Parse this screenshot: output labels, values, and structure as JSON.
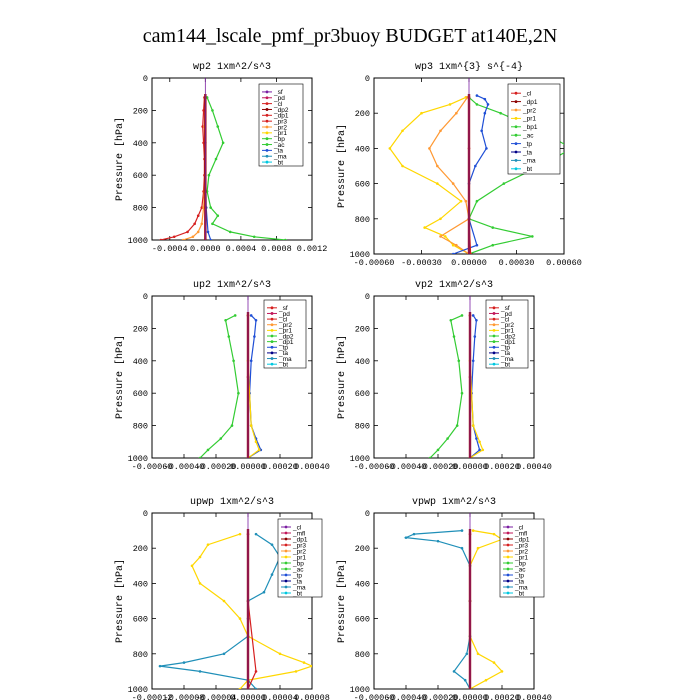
{
  "title": "cam144_lscale_pmf_pr3buoy  BUDGET at140E,2N",
  "colors": {
    "red": "#d62020",
    "darkred": "#8b0000",
    "purple": "#7b1fa2",
    "magenta": "#c2185b",
    "orange": "#ff9933",
    "yellow": "#ffd700",
    "green": "#33cc33",
    "blue": "#1f4fd6",
    "teal": "#1f8fb8",
    "cyan": "#00c8e0",
    "navy": "#000088",
    "black": "#000000",
    "thick": "#a01010"
  },
  "chart_data": [
    {
      "type": "line",
      "title": "wp2  1xm^2/s^3",
      "ylabel": "Pressure [hPa]",
      "xlim": [
        -0.0006,
        0.0012
      ],
      "ylim": [
        1000,
        0
      ],
      "xticks": [
        "-0.0004",
        "0.0000",
        "0.0004",
        "0.0008",
        "0.0012"
      ],
      "xtick_values": [
        -0.0004,
        0,
        0.0004,
        0.0008,
        0.0012
      ],
      "yticks": [
        0,
        200,
        400,
        600,
        800,
        1000
      ],
      "legend": [
        "_sf",
        "_pd",
        "_cl",
        "_dp2",
        "_dp1",
        "_pr3",
        "_pr2",
        "_pr1",
        "_bp",
        "_ac",
        "_ta",
        "_ma",
        "_bt"
      ],
      "legend_colors": [
        "purple",
        "magenta",
        "red",
        "darkred",
        "red",
        "red",
        "orange",
        "yellow",
        "green",
        "green",
        "blue",
        "teal",
        "cyan"
      ],
      "series": [
        {
          "color": "green",
          "p": [
            120,
            200,
            300,
            400,
            500,
            600,
            700,
            800,
            850,
            900,
            950,
            980,
            1000
          ],
          "v": [
            2e-05,
            8e-05,
            0.00014,
            0.0002,
            0.00012,
            4e-05,
            2e-05,
            6e-05,
            0.00014,
            8e-05,
            0.00028,
            0.00055,
            0.0009
          ]
        },
        {
          "color": "red",
          "p": [
            120,
            200,
            300,
            400,
            500,
            600,
            700,
            800,
            850,
            900,
            950,
            980,
            1000
          ],
          "v": [
            -1e-05,
            -2e-05,
            -3e-05,
            -2e-05,
            -1e-05,
            -1e-05,
            -2e-05,
            -4e-05,
            -8e-05,
            -0.00012,
            -0.0002,
            -0.00035,
            -0.0005
          ]
        },
        {
          "color": "orange",
          "p": [
            120,
            300,
            600,
            800,
            900,
            950,
            980,
            1000
          ],
          "v": [
            0.0,
            -1e-05,
            0.0,
            -2e-05,
            -4e-05,
            -8e-05,
            -0.00014,
            -0.00025
          ]
        },
        {
          "color": "blue",
          "p": [
            120,
            400,
            800,
            950,
            1000
          ],
          "v": [
            0.0,
            0.0,
            1e-05,
            3e-05,
            6e-05
          ]
        }
      ]
    },
    {
      "type": "line",
      "title": "wp3  1xm^{3} s^{-4}",
      "ylabel": "Pressure [hPa]",
      "xlim": [
        -0.0006,
        0.0006
      ],
      "ylim": [
        1000,
        0
      ],
      "xticks": [
        "-0.00060",
        "-0.00030",
        "0.00000",
        "0.00030",
        "0.00060"
      ],
      "xtick_values": [
        -0.0006,
        -0.0003,
        0,
        0.0003,
        0.0006
      ],
      "yticks": [
        0,
        200,
        400,
        600,
        800,
        1000
      ],
      "legend": [
        "_cl",
        "_dp1",
        "_pr2",
        "_pr1",
        "_bp1",
        "_ac",
        "_tp",
        "_ta",
        "_ma",
        "_bt"
      ],
      "legend_colors": [
        "red",
        "darkred",
        "orange",
        "yellow",
        "green",
        "green",
        "blue",
        "navy",
        "teal",
        "cyan"
      ],
      "series": [
        {
          "color": "green",
          "p": [
            110,
            150,
            200,
            300,
            400,
            500,
            600,
            700,
            800,
            850,
            900,
            950,
            1000
          ],
          "v": [
            0.0,
            5e-05,
            0.0002,
            0.00045,
            0.00065,
            0.00045,
            0.00022,
            5e-05,
            0.0,
            0.00015,
            0.0004,
            0.00015,
            0.0
          ]
        },
        {
          "color": "yellow",
          "p": [
            110,
            150,
            200,
            300,
            400,
            500,
            600,
            700,
            800,
            850,
            900,
            950,
            1000
          ],
          "v": [
            -2e-05,
            -0.00012,
            -0.0003,
            -0.00042,
            -0.0005,
            -0.00042,
            -0.0002,
            -5e-05,
            -0.00018,
            -0.00028,
            -0.00015,
            -0.0001,
            0.0
          ]
        },
        {
          "color": "orange",
          "p": [
            110,
            200,
            300,
            400,
            500,
            600,
            700,
            800,
            900,
            950,
            1000
          ],
          "v": [
            -1e-05,
            -8e-05,
            -0.00018,
            -0.00025,
            -0.0002,
            -0.0001,
            -2e-05,
            0.0,
            -0.00018,
            -8e-05,
            0.0
          ]
        },
        {
          "color": "blue",
          "p": [
            100,
            120,
            150,
            200,
            300,
            400,
            500,
            600,
            800,
            950,
            1000
          ],
          "v": [
            5e-05,
            0.0001,
            0.00012,
            0.0001,
            8e-05,
            0.00011,
            4e-05,
            0.0,
            0.0,
            5e-05,
            -0.0001
          ]
        },
        {
          "color": "red",
          "p": [
            110,
            400,
            800,
            1000
          ],
          "v": [
            0.0,
            0.0,
            0.0,
            1e-05
          ]
        }
      ]
    },
    {
      "type": "line",
      "title": "up2  1xm^2/s^3",
      "ylabel": "Pressure [hPa]",
      "xlim": [
        -0.0006,
        0.0004
      ],
      "ylim": [
        1000,
        0
      ],
      "xticks": [
        "-0.00060",
        "-0.00040",
        "-0.00020",
        "0.00000",
        "0.00020",
        "0.00040"
      ],
      "xtick_values": [
        -0.0006,
        -0.0004,
        -0.0002,
        0,
        0.0002,
        0.0004
      ],
      "yticks": [
        0,
        200,
        400,
        600,
        800,
        1000
      ],
      "legend": [
        "_sf",
        "_pd",
        "_cl",
        "_pr2",
        "_pr1",
        "_dp2",
        "_dp1",
        "_tp",
        "_ta",
        "_ma",
        "_bt"
      ],
      "legend_colors": [
        "red",
        "magenta",
        "red",
        "orange",
        "yellow",
        "green",
        "green",
        "blue",
        "navy",
        "teal",
        "cyan"
      ],
      "series": [
        {
          "color": "green",
          "p": [
            120,
            150,
            250,
            400,
            600,
            800,
            880,
            950,
            1000
          ],
          "v": [
            -8e-05,
            -0.00014,
            -0.00012,
            -9e-05,
            -6e-05,
            -0.0001,
            -0.00017,
            -0.00025,
            -0.0003
          ]
        },
        {
          "color": "blue",
          "p": [
            120,
            150,
            250,
            400,
            600,
            800,
            880,
            950,
            1000
          ],
          "v": [
            2e-05,
            5e-05,
            4e-05,
            2e-05,
            1e-05,
            2e-05,
            5e-05,
            8e-05,
            0.0
          ]
        },
        {
          "color": "yellow",
          "p": [
            120,
            400,
            800,
            900,
            950,
            1000
          ],
          "v": [
            0.0,
            0.0,
            2e-05,
            5e-05,
            7e-05,
            0.0
          ]
        },
        {
          "color": "red",
          "p": [
            120,
            500,
            1000
          ],
          "v": [
            0.0,
            0.0,
            0.0
          ]
        }
      ]
    },
    {
      "type": "line",
      "title": "vp2  1xm^2/s^3",
      "ylabel": "Pressure [hPa]",
      "xlim": [
        -0.0006,
        0.0004
      ],
      "ylim": [
        1000,
        0
      ],
      "xticks": [
        "-0.00060",
        "-0.00040",
        "-0.00020",
        "0.00000",
        "0.00020",
        "0.00040"
      ],
      "xtick_values": [
        -0.0006,
        -0.0004,
        -0.0002,
        0,
        0.0002,
        0.0004
      ],
      "yticks": [
        0,
        200,
        400,
        600,
        800,
        1000
      ],
      "legend": [
        "_sf",
        "_pd",
        "_cl",
        "_pr2",
        "_pr1",
        "_dp2",
        "_dp1",
        "_tp",
        "_ta",
        "_ma",
        "_bt"
      ],
      "legend_colors": [
        "red",
        "magenta",
        "red",
        "orange",
        "yellow",
        "green",
        "green",
        "blue",
        "navy",
        "teal",
        "cyan"
      ],
      "series": [
        {
          "color": "green",
          "p": [
            120,
            150,
            250,
            400,
            600,
            800,
            880,
            950,
            1000
          ],
          "v": [
            -5e-05,
            -0.00012,
            -0.0001,
            -7e-05,
            -5e-05,
            -8e-05,
            -0.00014,
            -0.0002,
            -0.00025
          ]
        },
        {
          "color": "blue",
          "p": [
            120,
            150,
            250,
            400,
            600,
            800,
            880,
            950,
            1000
          ],
          "v": [
            2e-05,
            4e-05,
            3e-05,
            2e-05,
            1e-05,
            2e-05,
            4e-05,
            6e-05,
            0.0
          ]
        },
        {
          "color": "yellow",
          "p": [
            120,
            400,
            800,
            900,
            950,
            1000
          ],
          "v": [
            0.0,
            0.0,
            2e-05,
            6e-05,
            8e-05,
            0.0
          ]
        },
        {
          "color": "red",
          "p": [
            120,
            500,
            1000
          ],
          "v": [
            0.0,
            0.0,
            0.0
          ]
        }
      ]
    },
    {
      "type": "line",
      "title": "upwp  1xm^2/s^3",
      "ylabel": "Pressure [hPa]",
      "xlim": [
        -0.00012,
        8e-05
      ],
      "ylim": [
        1000,
        0
      ],
      "xticks": [
        "-0.00012",
        "-0.00008",
        "-0.00004",
        "0.00000",
        "0.00004",
        "0.00008"
      ],
      "xtick_values": [
        -0.00012,
        -8e-05,
        -4e-05,
        0,
        4e-05,
        8e-05
      ],
      "yticks": [
        0,
        200,
        400,
        600,
        800,
        1000
      ],
      "legend": [
        "_cl",
        "_mfl",
        "_dp1",
        "_pr3",
        "_pr2",
        "_pr1",
        "_bp",
        "_ac",
        "_tp",
        "_ta",
        "_ma",
        "_bt"
      ],
      "legend_colors": [
        "purple",
        "magenta",
        "darkred",
        "red",
        "orange",
        "yellow",
        "green",
        "green",
        "blue",
        "navy",
        "teal",
        "cyan"
      ],
      "series": [
        {
          "color": "yellow",
          "p": [
            120,
            180,
            250,
            300,
            400,
            500,
            600,
            700,
            800,
            850,
            870,
            900,
            950,
            1000
          ],
          "v": [
            -1e-05,
            -5e-05,
            -6e-05,
            -7e-05,
            -6e-05,
            -3e-05,
            -1e-05,
            0.0,
            4e-05,
            7e-05,
            8e-05,
            6e-05,
            0.0,
            -1e-05
          ]
        },
        {
          "color": "teal",
          "p": [
            120,
            180,
            250,
            350,
            450,
            500,
            600,
            700,
            800,
            850,
            870,
            900,
            950,
            1000
          ],
          "v": [
            1e-05,
            3e-05,
            4e-05,
            3e-05,
            2e-05,
            0.0,
            0.0,
            0.0,
            -3e-05,
            -8e-05,
            -0.00011,
            -6e-05,
            0.0,
            1e-05
          ]
        },
        {
          "color": "red",
          "p": [
            120,
            500,
            900,
            1000
          ],
          "v": [
            0.0,
            0.0,
            1e-05,
            0.0
          ]
        }
      ]
    },
    {
      "type": "line",
      "title": "vpwp  1xm^2/s^3",
      "ylabel": "Pressure [hPa]",
      "xlim": [
        -0.0006,
        0.0004
      ],
      "ylim": [
        1000,
        0
      ],
      "xticks": [
        "-0.00060",
        "-0.00040",
        "-0.00020",
        "0.00000",
        "0.00020",
        "0.00040"
      ],
      "xtick_values": [
        -0.0006,
        -0.0004,
        -0.0002,
        0,
        0.0002,
        0.0004
      ],
      "yticks": [
        0,
        200,
        400,
        600,
        800,
        1000
      ],
      "legend": [
        "_cl",
        "_mfl",
        "_dp1",
        "_pr3",
        "_pr2",
        "_pr1",
        "_bp",
        "_ac",
        "_tp",
        "_ta",
        "_ma",
        "_bt"
      ],
      "legend_colors": [
        "purple",
        "magenta",
        "darkred",
        "red",
        "orange",
        "yellow",
        "green",
        "green",
        "blue",
        "navy",
        "teal",
        "cyan"
      ],
      "series": [
        {
          "color": "yellow",
          "p": [
            100,
            120,
            150,
            200,
            300,
            500,
            700,
            800,
            850,
            900,
            950,
            1000
          ],
          "v": [
            2e-05,
            0.00015,
            0.0002,
            5e-05,
            0.0,
            0.0,
            0.0,
            5e-05,
            0.00015,
            0.0002,
            0.0001,
            0.0
          ]
        },
        {
          "color": "teal",
          "p": [
            100,
            120,
            140,
            160,
            200,
            300,
            500,
            700,
            800,
            900,
            950,
            1000
          ],
          "v": [
            -5e-05,
            -0.00035,
            -0.0004,
            -0.0002,
            -5e-05,
            0.0,
            0.0,
            0.0,
            -2e-05,
            -0.0001,
            -3e-05,
            0.0
          ]
        },
        {
          "color": "red",
          "p": [
            120,
            500,
            1000
          ],
          "v": [
            0.0,
            0.0,
            0.0
          ]
        }
      ]
    }
  ]
}
